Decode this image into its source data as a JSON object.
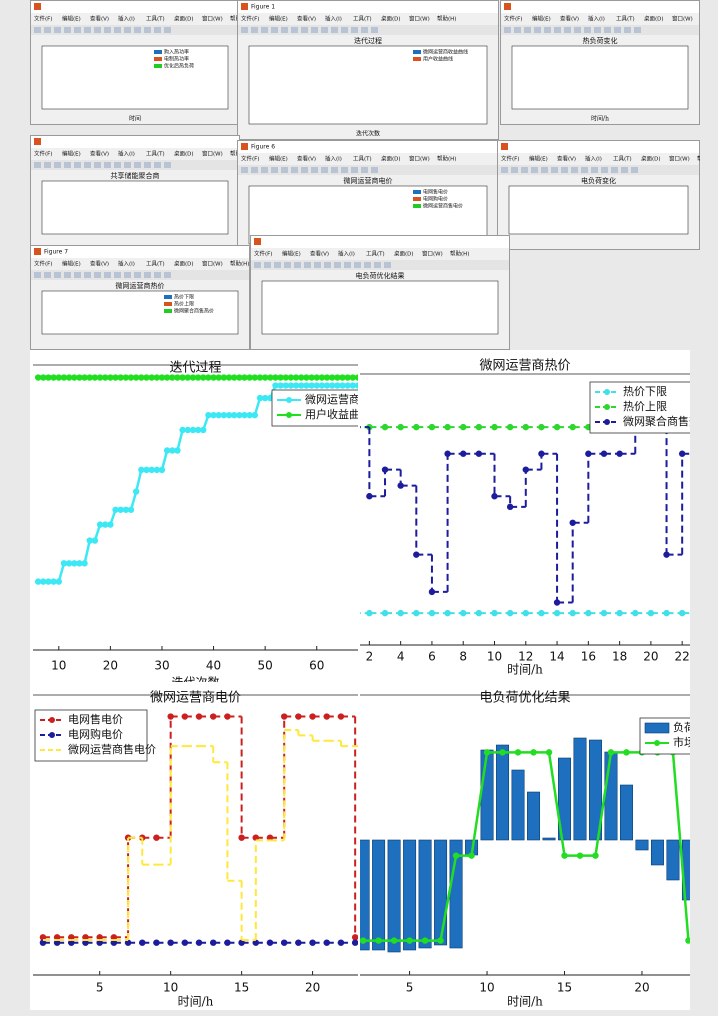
{
  "menu": [
    "文件(F)",
    "编辑(E)",
    "查看(V)",
    "插入(I)",
    "工具(T)",
    "桌面(D)",
    "窗口(W)",
    "帮助(H)"
  ],
  "windows": [
    {
      "legend": [
        "购入热功率",
        "电制热功率",
        "优化后热负荷"
      ],
      "xlabel": "时间"
    },
    {
      "figure": "Figure 1",
      "title": "迭代过程",
      "legend": [
        "微网运营商收益曲线",
        "用户收益曲线"
      ],
      "xlabel": "迭代次数"
    },
    {
      "title": "热负荷变化",
      "xlabel": "时间/h"
    },
    {
      "title": "共享储能聚合商"
    },
    {
      "figure": "Figure 6",
      "title": "微网运营商电价",
      "legend": [
        "电网售电价",
        "电网购电价",
        "微网运营商售电价"
      ]
    },
    {
      "title": "电负荷变化"
    },
    {
      "figure": "Figure 7",
      "title": "微网运营商热价",
      "legend": [
        "热价下限",
        "热价上限",
        "微网聚合商售热价"
      ]
    },
    {
      "title": "电负荷优化结果"
    }
  ],
  "chart_data": [
    {
      "type": "line",
      "title": "迭代过程",
      "xlabel": "迭代次数",
      "legend": "upper right",
      "x": [
        6,
        7,
        8,
        9,
        10,
        11,
        12,
        13,
        14,
        15,
        16,
        17,
        18,
        19,
        20,
        21,
        22,
        23,
        24,
        25,
        26,
        27,
        28,
        29,
        30,
        31,
        32,
        33,
        34,
        35,
        36,
        37,
        38,
        39,
        40,
        41,
        42,
        43,
        44,
        45,
        46,
        47,
        48,
        49,
        50,
        51,
        52,
        53,
        54,
        55,
        56,
        57,
        58,
        59,
        60,
        61,
        62,
        63,
        64,
        65,
        66,
        67,
        68
      ],
      "xlim": [
        5,
        68
      ],
      "xticks": [
        10,
        20,
        30,
        40,
        50,
        60
      ],
      "ylim": [
        150,
        400
      ],
      "series": [
        {
          "name": "微网运营商收益曲线",
          "color": "#3de8f5",
          "values": [
            210,
            210,
            210,
            210,
            210,
            226,
            226,
            226,
            226,
            226,
            246,
            246,
            260,
            260,
            260,
            273,
            273,
            273,
            273,
            289,
            308,
            308,
            308,
            308,
            308,
            325,
            325,
            325,
            343,
            343,
            343,
            343,
            343,
            356,
            356,
            356,
            356,
            356,
            356,
            356,
            356,
            356,
            356,
            371,
            371,
            371,
            382,
            382,
            382,
            382,
            382,
            382,
            382,
            382,
            382,
            382,
            382,
            382,
            382,
            382,
            382,
            382,
            382
          ]
        },
        {
          "name": "用户收益曲线",
          "color": "#1fe01f",
          "values": [
            389,
            389,
            389,
            389,
            389,
            389,
            389,
            389,
            389,
            389,
            389,
            389,
            389,
            389,
            389,
            389,
            389,
            389,
            389,
            389,
            389,
            389,
            389,
            389,
            389,
            389,
            389,
            389,
            389,
            389,
            389,
            389,
            389,
            389,
            389,
            389,
            389,
            389,
            389,
            389,
            389,
            389,
            389,
            389,
            389,
            389,
            389,
            389,
            389,
            389,
            389,
            389,
            389,
            389,
            389,
            389,
            389,
            389,
            389,
            389,
            389,
            389,
            389
          ]
        }
      ]
    },
    {
      "type": "line",
      "drawstyle": "steps-post",
      "linestyle": "dashed",
      "title": "微网运营商热价",
      "xlabel": "时间/h",
      "legend": "upper right",
      "x": [
        1,
        2,
        3,
        4,
        5,
        6,
        7,
        8,
        9,
        10,
        11,
        12,
        13,
        14,
        15,
        16,
        17,
        18,
        19,
        20,
        21,
        22
      ],
      "xlim": [
        1.4,
        22.5
      ],
      "xticks": [
        2,
        4,
        6,
        8,
        10,
        12,
        14,
        16,
        18,
        20,
        22
      ],
      "ylim": [
        0.09,
        0.6
      ],
      "series": [
        {
          "name": "热价下限",
          "color": "#40e0e8",
          "values": [
            0.15,
            0.15,
            0.15,
            0.15,
            0.15,
            0.15,
            0.15,
            0.15,
            0.15,
            0.15,
            0.15,
            0.15,
            0.15,
            0.15,
            0.15,
            0.15,
            0.15,
            0.15,
            0.15,
            0.15,
            0.15,
            0.15
          ]
        },
        {
          "name": "热价上限",
          "color": "#2ed62e",
          "values": [
            0.5,
            0.5,
            0.5,
            0.5,
            0.5,
            0.5,
            0.5,
            0.5,
            0.5,
            0.5,
            0.5,
            0.5,
            0.5,
            0.5,
            0.5,
            0.5,
            0.5,
            0.5,
            0.5,
            0.5,
            0.5,
            0.5
          ]
        },
        {
          "name": "微网聚合商售热价",
          "color": "#1c1c9c",
          "values": [
            0.5,
            0.37,
            0.42,
            0.39,
            0.26,
            0.19,
            0.45,
            0.45,
            0.45,
            0.37,
            0.35,
            0.42,
            0.45,
            0.17,
            0.32,
            0.45,
            0.45,
            0.45,
            0.5,
            0.5,
            0.26,
            0.45
          ]
        }
      ]
    },
    {
      "type": "line",
      "drawstyle": "steps-post",
      "linestyle": "dashed",
      "title": "微网运营商电价",
      "xlabel": "时间/h",
      "legend": "upper left",
      "x": [
        1,
        2,
        3,
        4,
        5,
        6,
        7,
        8,
        9,
        10,
        11,
        12,
        13,
        14,
        15,
        16,
        17,
        18,
        19,
        20,
        21,
        22,
        23
      ],
      "xlim": [
        0.3,
        23.2
      ],
      "xticks": [
        5,
        10,
        15,
        20
      ],
      "ylim": [
        0.24,
        1.28
      ],
      "series": [
        {
          "name": "电网售电价",
          "color": "#cc2020",
          "values": [
            0.38,
            0.38,
            0.38,
            0.38,
            0.38,
            0.38,
            0.75,
            0.75,
            0.75,
            1.2,
            1.2,
            1.2,
            1.2,
            1.2,
            0.75,
            0.75,
            0.75,
            1.2,
            1.2,
            1.2,
            1.2,
            1.2,
            0.38
          ]
        },
        {
          "name": "电网购电价",
          "color": "#1c1c9c",
          "values": [
            0.36,
            0.36,
            0.36,
            0.36,
            0.36,
            0.36,
            0.36,
            0.36,
            0.36,
            0.36,
            0.36,
            0.36,
            0.36,
            0.36,
            0.36,
            0.36,
            0.36,
            0.36,
            0.36,
            0.36,
            0.36,
            0.36,
            0.36
          ]
        },
        {
          "name": "微网运营商售电价",
          "color": "#ffe83a",
          "markers": false,
          "values": [
            0.37,
            0.37,
            0.37,
            0.37,
            0.37,
            0.37,
            0.75,
            0.65,
            0.65,
            1.09,
            1.09,
            1.09,
            1.03,
            0.59,
            0.37,
            0.74,
            0.74,
            1.15,
            1.13,
            1.11,
            1.11,
            1.09,
            1.09
          ]
        }
      ]
    },
    {
      "type": "bar",
      "title": "电负荷优化结果",
      "xlabel": "时间/h",
      "legend": "upper right",
      "x": [
        2,
        3,
        4,
        5,
        6,
        7,
        8,
        9,
        10,
        11,
        12,
        13,
        14,
        15,
        16,
        17,
        18,
        19,
        20,
        21,
        22,
        23
      ],
      "xlim": [
        1.8,
        23.1
      ],
      "xticks": [
        5,
        10,
        15,
        20
      ],
      "ylim": [
        -135,
        145
      ],
      "y2lim": [
        0.23,
        1.45
      ],
      "series": [
        {
          "name": "负荷转移",
          "color": "#1f6fbf",
          "values": [
            -110,
            -110,
            -112,
            -110,
            -108,
            -105,
            -108,
            -15,
            90,
            95,
            70,
            48,
            2,
            82,
            102,
            100,
            88,
            55,
            -10,
            -25,
            -40,
            -60
          ]
        },
        {
          "name": "市场电价",
          "color": "#22dd22",
          "type": "line",
          "axis": "y2",
          "values": [
            0.38,
            0.38,
            0.38,
            0.38,
            0.38,
            0.38,
            0.75,
            0.75,
            1.2,
            1.2,
            1.2,
            1.2,
            1.2,
            0.75,
            0.75,
            0.75,
            1.2,
            1.2,
            1.2,
            1.2,
            1.2,
            0.38
          ]
        }
      ]
    }
  ]
}
